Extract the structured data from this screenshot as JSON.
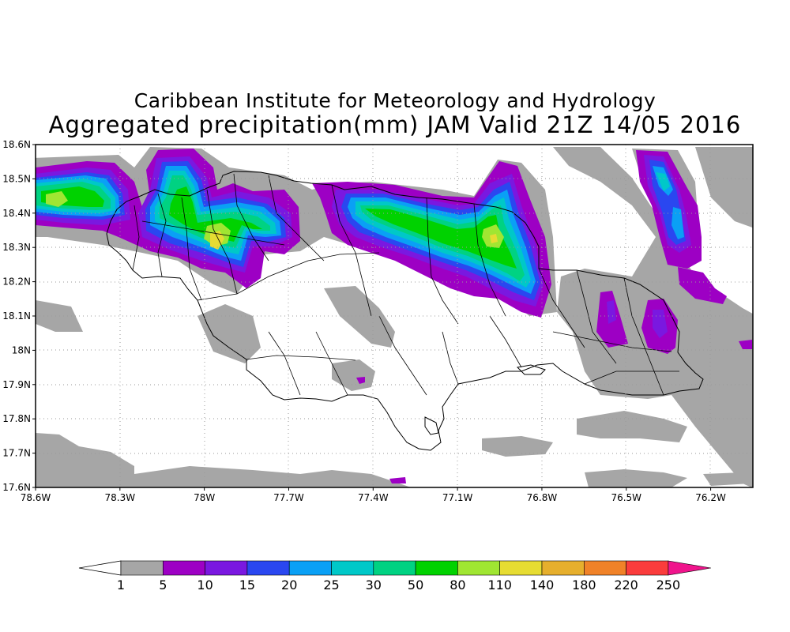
{
  "title": {
    "line1": "Caribbean Institute for Meteorology and Hydrology",
    "line2": "Aggregated precipitation(mm) JAM Valid 21Z 14/05 2016"
  },
  "map": {
    "lon_range": [
      -78.6,
      -76.05
    ],
    "lat_range": [
      17.6,
      18.6
    ],
    "grid": true,
    "y_ticks": [
      {
        "value": 18.6,
        "label": "18.6N"
      },
      {
        "value": 18.5,
        "label": "18.5N"
      },
      {
        "value": 18.4,
        "label": "18.4N"
      },
      {
        "value": 18.3,
        "label": "18.3N"
      },
      {
        "value": 18.2,
        "label": "18.2N"
      },
      {
        "value": 18.1,
        "label": "18.1N"
      },
      {
        "value": 18.0,
        "label": "18N"
      },
      {
        "value": 17.9,
        "label": "17.9N"
      },
      {
        "value": 17.8,
        "label": "17.8N"
      },
      {
        "value": 17.7,
        "label": "17.7N"
      },
      {
        "value": 17.6,
        "label": "17.6N"
      }
    ],
    "x_ticks": [
      {
        "value": -78.6,
        "label": "78.6W"
      },
      {
        "value": -78.3,
        "label": "78.3W"
      },
      {
        "value": -78.0,
        "label": "78W"
      },
      {
        "value": -77.7,
        "label": "77.7W"
      },
      {
        "value": -77.4,
        "label": "77.4W"
      },
      {
        "value": -77.1,
        "label": "77.1W"
      },
      {
        "value": -76.8,
        "label": "76.8W"
      },
      {
        "value": -76.5,
        "label": "76.5W"
      },
      {
        "value": -76.2,
        "label": "76.2W"
      }
    ]
  },
  "colorbar": {
    "levels": [
      "1",
      "5",
      "10",
      "15",
      "20",
      "25",
      "30",
      "50",
      "80",
      "110",
      "140",
      "180",
      "220",
      "250"
    ],
    "colors": [
      "#a6a6a6",
      "#9d00c4",
      "#7a18e0",
      "#2a47f0",
      "#0aa0f5",
      "#00c8c8",
      "#00d282",
      "#00d200",
      "#a0e632",
      "#e6dc32",
      "#e6af2d",
      "#f08228",
      "#fa3c3c",
      "#f0148c"
    ],
    "under_color": "#ffffff",
    "over_color": "#f0148c"
  },
  "colors": {
    "gray": "#a6a6a6",
    "purple": "#9d00c4",
    "violet": "#7a18e0",
    "blue": "#2a47f0",
    "sky": "#0aa0f5",
    "cyan": "#00c8c8",
    "teal": "#00d282",
    "green": "#00d200",
    "lime": "#a0e632",
    "yellow": "#e6dc32"
  }
}
